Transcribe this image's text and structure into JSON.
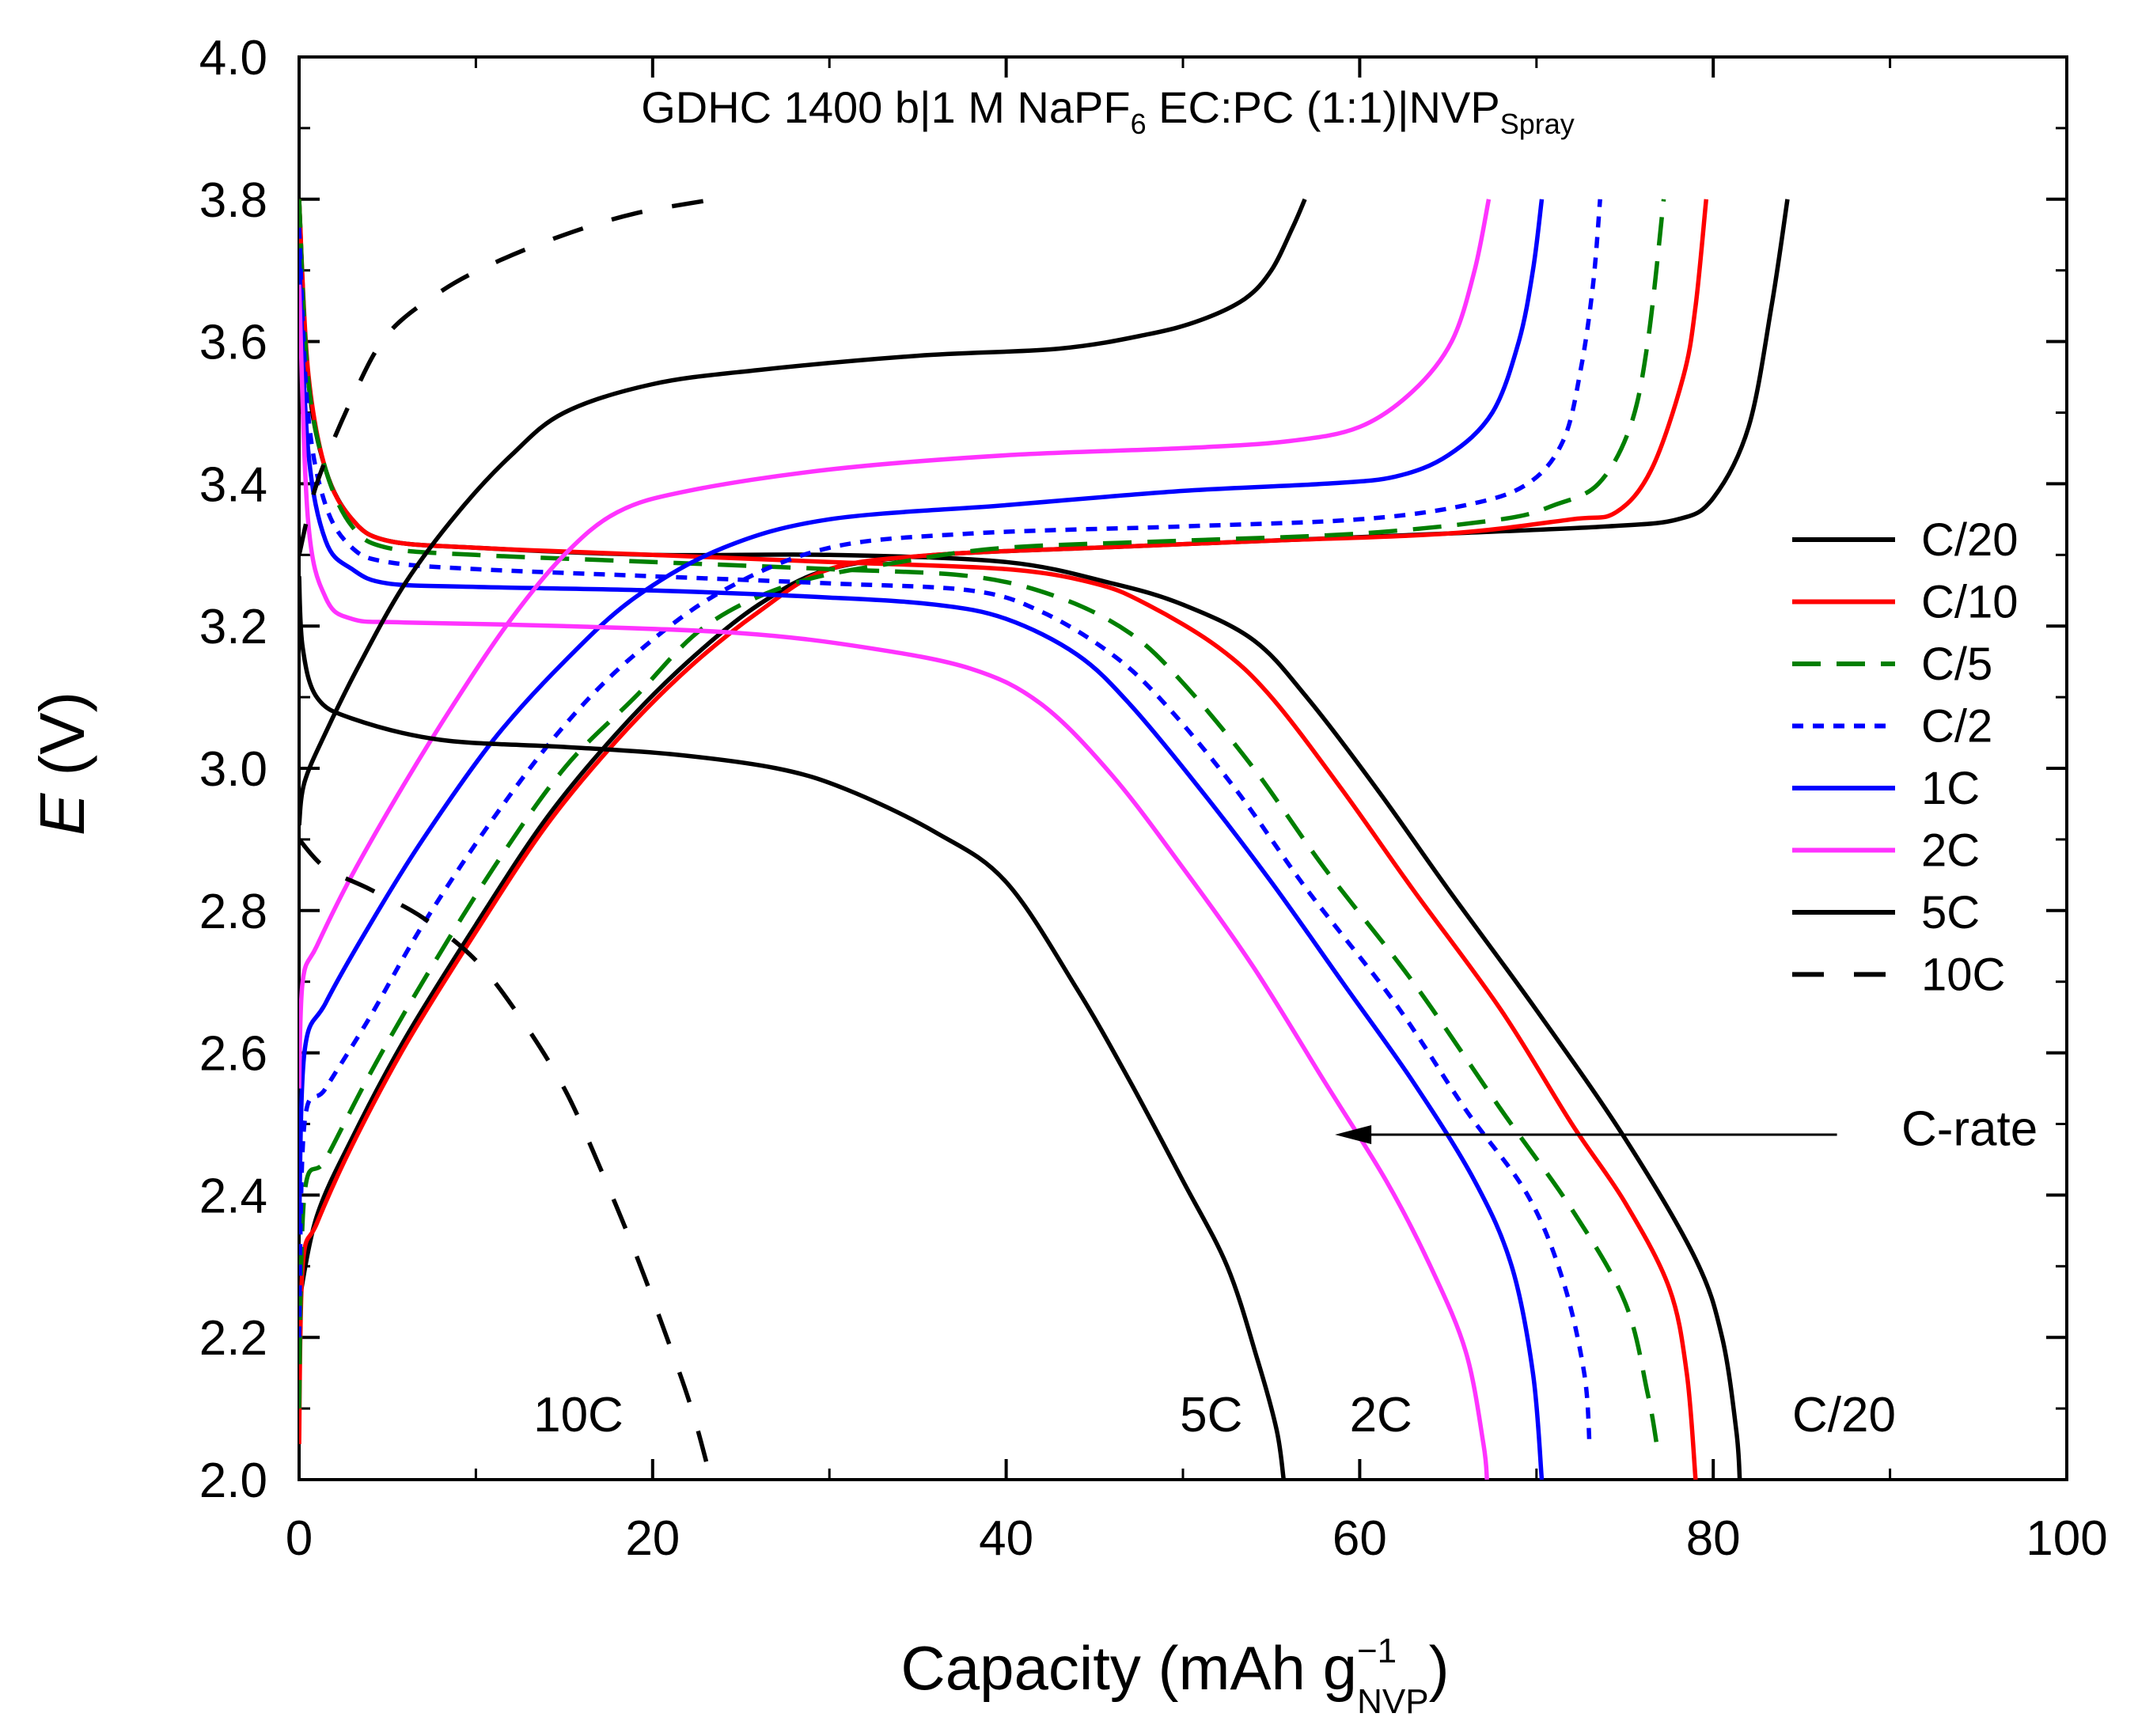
{
  "chart_data": {
    "type": "line",
    "title": {
      "main": "GDHC 1400 b|1 M NaPF",
      "sub1": "6",
      "mid": " EC:PC (1:1)|NVP",
      "sub2": "Spray"
    },
    "xlabel": {
      "main": "Capacity (mAh g",
      "sup": "−1",
      "sub": "NVP",
      "end": ")"
    },
    "ylabel": {
      "italic": "E",
      "rest": " (V)"
    },
    "xlim": [
      0,
      100
    ],
    "ylim": [
      2.0,
      4.0
    ],
    "x_ticks": [
      0,
      20,
      40,
      60,
      80,
      100
    ],
    "x_tick_labels": [
      "0",
      "20",
      "40",
      "60",
      "80",
      "100"
    ],
    "y_ticks": [
      2.0,
      2.2,
      2.4,
      2.6,
      2.8,
      3.0,
      3.2,
      3.4,
      3.6,
      3.8,
      4.0
    ],
    "y_tick_labels": [
      "2.0",
      "2.2",
      "2.4",
      "2.6",
      "2.8",
      "3.0",
      "3.2",
      "3.4",
      "3.6",
      "3.8",
      "4.0"
    ],
    "grid": false,
    "legend_position": "right",
    "series": [
      {
        "name": "C/20",
        "color": "#000000",
        "dash": "solid",
        "charge": [
          [
            0,
            2.25
          ],
          [
            1,
            2.37
          ],
          [
            3,
            2.48
          ],
          [
            6,
            2.62
          ],
          [
            10,
            2.78
          ],
          [
            14,
            2.93
          ],
          [
            18,
            3.05
          ],
          [
            22,
            3.15
          ],
          [
            26,
            3.23
          ],
          [
            30,
            3.28
          ],
          [
            36,
            3.3
          ],
          [
            45,
            3.31
          ],
          [
            55,
            3.32
          ],
          [
            65,
            3.33
          ],
          [
            74,
            3.34
          ],
          [
            78,
            3.35
          ],
          [
            80,
            3.38
          ],
          [
            82,
            3.48
          ],
          [
            83.3,
            3.65
          ],
          [
            84.2,
            3.8
          ]
        ],
        "discharge": [
          [
            0,
            3.8
          ],
          [
            0.5,
            3.55
          ],
          [
            1.5,
            3.42
          ],
          [
            3,
            3.35
          ],
          [
            5,
            3.32
          ],
          [
            10,
            3.31
          ],
          [
            20,
            3.3
          ],
          [
            30,
            3.3
          ],
          [
            40,
            3.29
          ],
          [
            46,
            3.26
          ],
          [
            50,
            3.23
          ],
          [
            54,
            3.18
          ],
          [
            57,
            3.1
          ],
          [
            61,
            2.97
          ],
          [
            65,
            2.83
          ],
          [
            70,
            2.66
          ],
          [
            75,
            2.48
          ],
          [
            79,
            2.31
          ],
          [
            80.5,
            2.2
          ],
          [
            81.3,
            2.07
          ],
          [
            81.5,
            2.0
          ]
        ]
      },
      {
        "name": "C/10",
        "color": "#ff0000",
        "dash": "solid",
        "charge": [
          [
            0,
            2.05
          ],
          [
            0.2,
            2.3
          ],
          [
            1,
            2.36
          ],
          [
            3,
            2.47
          ],
          [
            6,
            2.61
          ],
          [
            10,
            2.77
          ],
          [
            14,
            2.92
          ],
          [
            18,
            3.04
          ],
          [
            22,
            3.14
          ],
          [
            26,
            3.22
          ],
          [
            30,
            3.28
          ],
          [
            36,
            3.3
          ],
          [
            45,
            3.31
          ],
          [
            55,
            3.32
          ],
          [
            65,
            3.33
          ],
          [
            72,
            3.35
          ],
          [
            74.5,
            3.36
          ],
          [
            76.5,
            3.42
          ],
          [
            78.3,
            3.55
          ],
          [
            79,
            3.65
          ],
          [
            79.6,
            3.8
          ]
        ],
        "discharge": [
          [
            0,
            3.8
          ],
          [
            0.5,
            3.56
          ],
          [
            1.5,
            3.42
          ],
          [
            3,
            3.35
          ],
          [
            5,
            3.32
          ],
          [
            10,
            3.31
          ],
          [
            20,
            3.3
          ],
          [
            30,
            3.29
          ],
          [
            40,
            3.28
          ],
          [
            45,
            3.26
          ],
          [
            48,
            3.23
          ],
          [
            52,
            3.17
          ],
          [
            55,
            3.1
          ],
          [
            59,
            2.97
          ],
          [
            63,
            2.83
          ],
          [
            68,
            2.66
          ],
          [
            72,
            2.5
          ],
          [
            75,
            2.39
          ],
          [
            77.5,
            2.27
          ],
          [
            78.5,
            2.15
          ],
          [
            79,
            2.0
          ]
        ]
      },
      {
        "name": "C/5",
        "color": "#007f00",
        "dash": "long",
        "charge": [
          [
            0,
            2.1
          ],
          [
            0.3,
            2.4
          ],
          [
            1.5,
            2.45
          ],
          [
            4,
            2.57
          ],
          [
            7,
            2.7
          ],
          [
            11,
            2.86
          ],
          [
            15,
            3.0
          ],
          [
            19,
            3.1
          ],
          [
            23,
            3.2
          ],
          [
            28,
            3.26
          ],
          [
            34,
            3.29
          ],
          [
            40,
            3.31
          ],
          [
            50,
            3.32
          ],
          [
            60,
            3.33
          ],
          [
            68,
            3.35
          ],
          [
            71,
            3.37
          ],
          [
            73.5,
            3.4
          ],
          [
            75.3,
            3.48
          ],
          [
            76.3,
            3.6
          ],
          [
            77.2,
            3.8
          ]
        ],
        "discharge": [
          [
            0,
            3.8
          ],
          [
            0.5,
            3.55
          ],
          [
            1.5,
            3.42
          ],
          [
            3,
            3.34
          ],
          [
            5,
            3.31
          ],
          [
            10,
            3.3
          ],
          [
            20,
            3.29
          ],
          [
            30,
            3.28
          ],
          [
            38,
            3.27
          ],
          [
            43,
            3.24
          ],
          [
            47,
            3.19
          ],
          [
            50,
            3.12
          ],
          [
            54,
            3.0
          ],
          [
            58,
            2.86
          ],
          [
            63,
            2.7
          ],
          [
            68,
            2.52
          ],
          [
            72,
            2.38
          ],
          [
            75,
            2.25
          ],
          [
            76.3,
            2.12
          ],
          [
            76.8,
            2.05
          ]
        ]
      },
      {
        "name": "C/2",
        "color": "#0000ff",
        "dash": "short",
        "charge": [
          [
            0,
            2.2
          ],
          [
            0.3,
            2.5
          ],
          [
            1.5,
            2.55
          ],
          [
            4,
            2.65
          ],
          [
            7,
            2.78
          ],
          [
            11,
            2.93
          ],
          [
            15,
            3.06
          ],
          [
            19,
            3.16
          ],
          [
            24,
            3.25
          ],
          [
            30,
            3.31
          ],
          [
            38,
            3.33
          ],
          [
            50,
            3.34
          ],
          [
            60,
            3.35
          ],
          [
            66,
            3.37
          ],
          [
            69.5,
            3.4
          ],
          [
            71.5,
            3.46
          ],
          [
            72.5,
            3.56
          ],
          [
            73.2,
            3.68
          ],
          [
            73.6,
            3.8
          ]
        ],
        "discharge": [
          [
            0,
            3.76
          ],
          [
            0.5,
            3.5
          ],
          [
            1.5,
            3.37
          ],
          [
            3,
            3.31
          ],
          [
            5,
            3.29
          ],
          [
            10,
            3.28
          ],
          [
            20,
            3.27
          ],
          [
            30,
            3.26
          ],
          [
            38,
            3.25
          ],
          [
            42,
            3.22
          ],
          [
            46,
            3.16
          ],
          [
            49,
            3.09
          ],
          [
            53,
            2.97
          ],
          [
            57,
            2.83
          ],
          [
            62,
            2.67
          ],
          [
            66,
            2.52
          ],
          [
            69.5,
            2.4
          ],
          [
            71.5,
            2.28
          ],
          [
            72.7,
            2.15
          ],
          [
            73,
            2.05
          ]
        ]
      },
      {
        "name": "1C",
        "color": "#0000ff",
        "dash": "solid",
        "charge": [
          [
            0,
            2.35
          ],
          [
            0.3,
            2.6
          ],
          [
            1.5,
            2.67
          ],
          [
            4,
            2.78
          ],
          [
            7,
            2.9
          ],
          [
            11,
            3.04
          ],
          [
            15,
            3.15
          ],
          [
            19,
            3.24
          ],
          [
            24,
            3.31
          ],
          [
            30,
            3.35
          ],
          [
            40,
            3.37
          ],
          [
            50,
            3.39
          ],
          [
            58,
            3.4
          ],
          [
            62,
            3.41
          ],
          [
            65,
            3.44
          ],
          [
            67.5,
            3.5
          ],
          [
            69,
            3.6
          ],
          [
            69.8,
            3.7
          ],
          [
            70.3,
            3.8
          ]
        ],
        "discharge": [
          [
            0,
            3.72
          ],
          [
            0.5,
            3.45
          ],
          [
            1.5,
            3.32
          ],
          [
            3,
            3.28
          ],
          [
            5,
            3.26
          ],
          [
            10,
            3.255
          ],
          [
            20,
            3.25
          ],
          [
            30,
            3.24
          ],
          [
            36,
            3.23
          ],
          [
            40,
            3.21
          ],
          [
            44,
            3.16
          ],
          [
            47,
            3.09
          ],
          [
            51,
            2.97
          ],
          [
            55,
            2.84
          ],
          [
            59,
            2.7
          ],
          [
            63,
            2.56
          ],
          [
            66.5,
            2.42
          ],
          [
            68.6,
            2.3
          ],
          [
            69.8,
            2.15
          ],
          [
            70.3,
            2.0
          ]
        ]
      },
      {
        "name": "2C",
        "color": "#ff33ff",
        "dash": "solid",
        "charge": [
          [
            0,
            2.55
          ],
          [
            0.2,
            2.7
          ],
          [
            1,
            2.75
          ],
          [
            3,
            2.85
          ],
          [
            6,
            2.98
          ],
          [
            9,
            3.1
          ],
          [
            12,
            3.21
          ],
          [
            15,
            3.3
          ],
          [
            18,
            3.36
          ],
          [
            22,
            3.39
          ],
          [
            30,
            3.42
          ],
          [
            40,
            3.44
          ],
          [
            50,
            3.45
          ],
          [
            56,
            3.46
          ],
          [
            60,
            3.48
          ],
          [
            63,
            3.53
          ],
          [
            65.2,
            3.6
          ],
          [
            66.5,
            3.7
          ],
          [
            67.3,
            3.8
          ]
        ],
        "discharge": [
          [
            0,
            3.68
          ],
          [
            0.5,
            3.35
          ],
          [
            1.5,
            3.24
          ],
          [
            3,
            3.21
          ],
          [
            6,
            3.205
          ],
          [
            15,
            3.2
          ],
          [
            25,
            3.19
          ],
          [
            32,
            3.17
          ],
          [
            38,
            3.14
          ],
          [
            42,
            3.09
          ],
          [
            46,
            2.99
          ],
          [
            50,
            2.86
          ],
          [
            54,
            2.72
          ],
          [
            58,
            2.56
          ],
          [
            61.5,
            2.42
          ],
          [
            64,
            2.3
          ],
          [
            66,
            2.18
          ],
          [
            67,
            2.05
          ],
          [
            67.2,
            2.0
          ]
        ]
      },
      {
        "name": "5C",
        "color": "#000000",
        "dash": "solid",
        "charge": [
          [
            0,
            2.92
          ],
          [
            0.3,
            2.98
          ],
          [
            1.5,
            3.05
          ],
          [
            3.5,
            3.15
          ],
          [
            6,
            3.26
          ],
          [
            9,
            3.36
          ],
          [
            12,
            3.44
          ],
          [
            15,
            3.5
          ],
          [
            20,
            3.54
          ],
          [
            26,
            3.56
          ],
          [
            35,
            3.58
          ],
          [
            43,
            3.59
          ],
          [
            48,
            3.61
          ],
          [
            51,
            3.63
          ],
          [
            53.5,
            3.66
          ],
          [
            55,
            3.7
          ],
          [
            56.2,
            3.76
          ],
          [
            56.9,
            3.8
          ]
        ],
        "discharge": [
          [
            0,
            3.27
          ],
          [
            0.2,
            3.17
          ],
          [
            1,
            3.1
          ],
          [
            3,
            3.07
          ],
          [
            8,
            3.04
          ],
          [
            15,
            3.03
          ],
          [
            21,
            3.02
          ],
          [
            27,
            3.0
          ],
          [
            31,
            2.97
          ],
          [
            36,
            2.91
          ],
          [
            40,
            2.84
          ],
          [
            44,
            2.69
          ],
          [
            47,
            2.56
          ],
          [
            50,
            2.42
          ],
          [
            52.5,
            2.3
          ],
          [
            54.2,
            2.17
          ],
          [
            55.3,
            2.07
          ],
          [
            55.7,
            2.0
          ]
        ]
      },
      {
        "name": "10C",
        "color": "#000000",
        "dash": "long-gap",
        "charge": [
          [
            0,
            3.3
          ],
          [
            1,
            3.4
          ],
          [
            3,
            3.52
          ],
          [
            5,
            3.61
          ],
          [
            8,
            3.67
          ],
          [
            11,
            3.71
          ],
          [
            15,
            3.75
          ],
          [
            19,
            3.78
          ],
          [
            23.5,
            3.8
          ]
        ],
        "discharge": [
          [
            0,
            2.9
          ],
          [
            1.5,
            2.86
          ],
          [
            4,
            2.83
          ],
          [
            7,
            2.79
          ],
          [
            10,
            2.73
          ],
          [
            12.5,
            2.65
          ],
          [
            15,
            2.55
          ],
          [
            17,
            2.44
          ],
          [
            19,
            2.32
          ],
          [
            20.8,
            2.2
          ],
          [
            22.2,
            2.1
          ],
          [
            23.3,
            2.0
          ]
        ]
      }
    ],
    "end_labels": [
      {
        "text": "10C",
        "x": 15.8,
        "y": 2.09
      },
      {
        "text": "5C",
        "x": 51.6,
        "y": 2.09
      },
      {
        "text": "2C",
        "x": 61.2,
        "y": 2.09
      },
      {
        "text": "C/20",
        "x": 87.4,
        "y": 2.09
      }
    ],
    "annotation": {
      "text": "C-rate",
      "arrow_from": [
        87,
        2.485
      ],
      "arrow_to": [
        58.6,
        2.485
      ],
      "text_x": 94.5,
      "text_y": 2.47
    }
  }
}
